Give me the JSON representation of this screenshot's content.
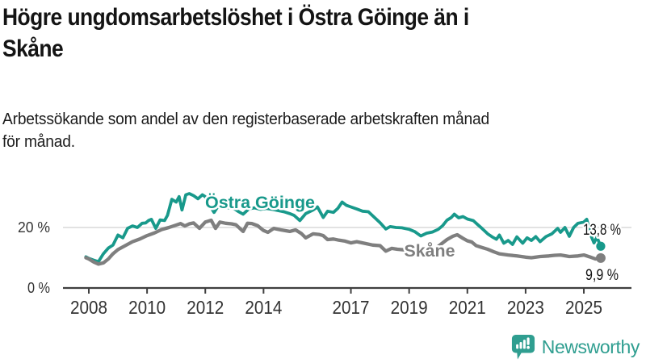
{
  "header": {
    "title_lines": [
      "Högre ungdomsarbetslöshet i Östra Göinge än i",
      "Skåne"
    ],
    "subtitle_lines": [
      "Arbetssökande som andel av den registerbaserade arbetskraften månad",
      "för månad."
    ]
  },
  "colors": {
    "accent_teal": "#18998b",
    "series_gray": "#7f7f7f",
    "grid": "#d9d9d9",
    "axis": "#3f3f3f",
    "text": "#1a1a1a",
    "brand_teal": "#2f9e90"
  },
  "chart_data": {
    "type": "line",
    "unit": "%",
    "x_axis": {
      "tick_years": [
        2008,
        2010,
        2012,
        2014,
        2017,
        2019,
        2021,
        2023,
        2025
      ],
      "range": [
        2007.9,
        2025.6
      ]
    },
    "y_axis": {
      "ticks": [
        {
          "value": 0,
          "label": "0 %"
        },
        {
          "value": 20,
          "label": "20 %"
        }
      ],
      "range": [
        0,
        33
      ],
      "grid_values": [
        20
      ]
    },
    "legend_position": "inline-labels-on-lines",
    "series": [
      {
        "name": "Östra Göinge",
        "color": "#18998b",
        "end_value": 13.8,
        "end_label": "13,8 %",
        "points": [
          [
            2007.9,
            10.3
          ],
          [
            2008.0,
            9.8
          ],
          [
            2008.17,
            9.2
          ],
          [
            2008.33,
            8.7
          ],
          [
            2008.5,
            11.3
          ],
          [
            2008.67,
            13.2
          ],
          [
            2008.83,
            14.2
          ],
          [
            2009.0,
            17.5
          ],
          [
            2009.17,
            16.6
          ],
          [
            2009.33,
            19.7
          ],
          [
            2009.5,
            20.5
          ],
          [
            2009.67,
            20.0
          ],
          [
            2009.83,
            21.4
          ],
          [
            2009.95,
            21.5
          ],
          [
            2010.05,
            22.3
          ],
          [
            2010.15,
            22.7
          ],
          [
            2010.3,
            19.7
          ],
          [
            2010.45,
            22.5
          ],
          [
            2010.6,
            22.3
          ],
          [
            2010.7,
            24.0
          ],
          [
            2010.85,
            29.3
          ],
          [
            2011.0,
            28.4
          ],
          [
            2011.1,
            30.2
          ],
          [
            2011.2,
            25.8
          ],
          [
            2011.33,
            30.8
          ],
          [
            2011.45,
            31.2
          ],
          [
            2011.6,
            30.5
          ],
          [
            2011.75,
            29.5
          ],
          [
            2011.9,
            30.8
          ],
          [
            2012.0,
            30.2
          ],
          [
            2012.15,
            27.3
          ],
          [
            2012.3,
            25.0
          ],
          [
            2012.45,
            27.2
          ],
          [
            2012.6,
            27.0
          ],
          [
            2012.8,
            26.5
          ],
          [
            2013.0,
            26.2
          ],
          [
            2013.15,
            25.2
          ],
          [
            2013.3,
            24.4
          ],
          [
            2013.5,
            26.2
          ],
          [
            2013.7,
            26.5
          ],
          [
            2013.9,
            26.0
          ],
          [
            2014.1,
            26.3
          ],
          [
            2014.3,
            26.0
          ],
          [
            2014.5,
            25.6
          ],
          [
            2014.7,
            25.2
          ],
          [
            2014.9,
            24.6
          ],
          [
            2015.05,
            24.0
          ],
          [
            2015.25,
            22.3
          ],
          [
            2015.45,
            24.6
          ],
          [
            2015.7,
            25.8
          ],
          [
            2015.85,
            26.8
          ],
          [
            2016.05,
            23.3
          ],
          [
            2016.2,
            25.4
          ],
          [
            2016.4,
            25.0
          ],
          [
            2016.55,
            26.3
          ],
          [
            2016.7,
            28.4
          ],
          [
            2016.85,
            27.3
          ],
          [
            2017.0,
            26.8
          ],
          [
            2017.2,
            26.1
          ],
          [
            2017.4,
            25.4
          ],
          [
            2017.6,
            25.2
          ],
          [
            2017.8,
            23.4
          ],
          [
            2018.0,
            21.6
          ],
          [
            2018.2,
            19.5
          ],
          [
            2018.35,
            20.3
          ],
          [
            2018.55,
            20.0
          ],
          [
            2018.75,
            19.9
          ],
          [
            2019.0,
            19.4
          ],
          [
            2019.2,
            18.6
          ],
          [
            2019.4,
            17.2
          ],
          [
            2019.6,
            18.1
          ],
          [
            2019.8,
            18.5
          ],
          [
            2020.0,
            19.4
          ],
          [
            2020.15,
            20.6
          ],
          [
            2020.3,
            22.4
          ],
          [
            2020.45,
            23.3
          ],
          [
            2020.55,
            24.4
          ],
          [
            2020.7,
            23.2
          ],
          [
            2020.85,
            23.6
          ],
          [
            2021.0,
            22.8
          ],
          [
            2021.2,
            22.3
          ],
          [
            2021.35,
            21.0
          ],
          [
            2021.5,
            19.7
          ],
          [
            2021.7,
            17.9
          ],
          [
            2021.85,
            16.9
          ],
          [
            2022.0,
            16.1
          ],
          [
            2022.1,
            17.5
          ],
          [
            2022.25,
            14.8
          ],
          [
            2022.4,
            15.7
          ],
          [
            2022.55,
            14.4
          ],
          [
            2022.7,
            16.9
          ],
          [
            2022.9,
            14.8
          ],
          [
            2023.05,
            16.6
          ],
          [
            2023.2,
            15.7
          ],
          [
            2023.35,
            17.0
          ],
          [
            2023.5,
            15.3
          ],
          [
            2023.7,
            17.0
          ],
          [
            2023.9,
            17.9
          ],
          [
            2024.1,
            19.7
          ],
          [
            2024.2,
            18.4
          ],
          [
            2024.35,
            20.0
          ],
          [
            2024.5,
            17.1
          ],
          [
            2024.65,
            20.0
          ],
          [
            2024.8,
            21.4
          ],
          [
            2025.0,
            21.8
          ],
          [
            2025.1,
            22.7
          ],
          [
            2025.25,
            17.2
          ],
          [
            2025.35,
            14.9
          ],
          [
            2025.45,
            16.8
          ],
          [
            2025.58,
            13.8
          ]
        ]
      },
      {
        "name": "Skåne",
        "color": "#7f7f7f",
        "end_value": 9.9,
        "end_label": "9,9 %",
        "points": [
          [
            2007.9,
            10.0
          ],
          [
            2008.0,
            9.6
          ],
          [
            2008.17,
            8.6
          ],
          [
            2008.33,
            7.9
          ],
          [
            2008.5,
            8.3
          ],
          [
            2008.67,
            9.6
          ],
          [
            2008.83,
            11.3
          ],
          [
            2009.0,
            12.7
          ],
          [
            2009.25,
            14.0
          ],
          [
            2009.5,
            15.3
          ],
          [
            2009.75,
            16.2
          ],
          [
            2010.0,
            17.3
          ],
          [
            2010.25,
            18.2
          ],
          [
            2010.5,
            19.3
          ],
          [
            2010.75,
            20.0
          ],
          [
            2011.0,
            20.8
          ],
          [
            2011.15,
            21.3
          ],
          [
            2011.3,
            20.5
          ],
          [
            2011.45,
            21.2
          ],
          [
            2011.6,
            21.5
          ],
          [
            2011.8,
            19.7
          ],
          [
            2012.0,
            21.8
          ],
          [
            2012.2,
            22.4
          ],
          [
            2012.35,
            19.7
          ],
          [
            2012.5,
            21.8
          ],
          [
            2012.7,
            21.4
          ],
          [
            2012.9,
            21.2
          ],
          [
            2013.05,
            20.9
          ],
          [
            2013.3,
            18.7
          ],
          [
            2013.45,
            21.4
          ],
          [
            2013.6,
            21.3
          ],
          [
            2013.8,
            20.6
          ],
          [
            2014.0,
            19.0
          ],
          [
            2014.15,
            18.4
          ],
          [
            2014.35,
            19.7
          ],
          [
            2014.6,
            19.2
          ],
          [
            2014.9,
            18.7
          ],
          [
            2015.1,
            19.2
          ],
          [
            2015.3,
            18.0
          ],
          [
            2015.45,
            16.6
          ],
          [
            2015.7,
            17.9
          ],
          [
            2015.9,
            17.7
          ],
          [
            2016.05,
            17.3
          ],
          [
            2016.2,
            16.0
          ],
          [
            2016.4,
            16.2
          ],
          [
            2016.6,
            15.8
          ],
          [
            2016.8,
            15.5
          ],
          [
            2017.0,
            14.9
          ],
          [
            2017.2,
            15.3
          ],
          [
            2017.5,
            14.7
          ],
          [
            2017.75,
            14.2
          ],
          [
            2018.0,
            14.0
          ],
          [
            2018.2,
            12.2
          ],
          [
            2018.4,
            13.1
          ],
          [
            2018.6,
            12.8
          ],
          [
            2018.85,
            12.6
          ],
          [
            2019.1,
            12.2
          ],
          [
            2019.35,
            11.8
          ],
          [
            2019.6,
            12.2
          ],
          [
            2019.9,
            13.0
          ],
          [
            2020.1,
            14.5
          ],
          [
            2020.3,
            16.0
          ],
          [
            2020.5,
            17.1
          ],
          [
            2020.65,
            17.6
          ],
          [
            2020.85,
            16.4
          ],
          [
            2021.0,
            15.6
          ],
          [
            2021.15,
            15.2
          ],
          [
            2021.3,
            14.0
          ],
          [
            2021.5,
            13.4
          ],
          [
            2021.7,
            12.8
          ],
          [
            2021.9,
            12.0
          ],
          [
            2022.1,
            11.3
          ],
          [
            2022.4,
            10.9
          ],
          [
            2022.7,
            10.6
          ],
          [
            2023.0,
            10.2
          ],
          [
            2023.2,
            10.0
          ],
          [
            2023.5,
            10.4
          ],
          [
            2023.8,
            10.6
          ],
          [
            2024.0,
            10.8
          ],
          [
            2024.2,
            10.9
          ],
          [
            2024.5,
            10.4
          ],
          [
            2024.8,
            10.6
          ],
          [
            2025.0,
            10.9
          ],
          [
            2025.2,
            10.3
          ],
          [
            2025.4,
            9.6
          ],
          [
            2025.58,
            9.9
          ]
        ]
      }
    ]
  },
  "footer": {
    "brand": "Newsworthy",
    "logo_icon": "bar-chart-exclamation-bubble-icon"
  }
}
